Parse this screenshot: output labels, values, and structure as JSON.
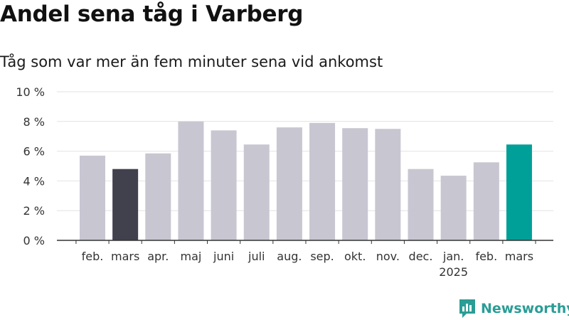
{
  "title": "Andel sena tåg i Varberg",
  "subtitle": "Tåg som var mer än fem minuter sena vid ankomst",
  "brand": "Newsworthy",
  "colors": {
    "default_bar": "#c8c6d1",
    "previous_year_bar": "#41404d",
    "latest_bar": "#00a098"
  },
  "chart_data": {
    "type": "bar",
    "categories": [
      "feb.",
      "mars",
      "apr.",
      "maj",
      "juni",
      "juli",
      "aug.",
      "sep.",
      "okt.",
      "nov.",
      "dec.",
      "jan.",
      "feb.",
      "mars"
    ],
    "category_sublabels": [
      "",
      "",
      "",
      "",
      "",
      "",
      "",
      "",
      "",
      "",
      "",
      "2025",
      "",
      ""
    ],
    "values": [
      5.7,
      4.8,
      5.85,
      8.0,
      7.4,
      6.45,
      7.6,
      7.9,
      7.55,
      7.5,
      4.8,
      4.35,
      5.25,
      6.45
    ],
    "bar_colors": [
      "default_bar",
      "previous_year_bar",
      "default_bar",
      "default_bar",
      "default_bar",
      "default_bar",
      "default_bar",
      "default_bar",
      "default_bar",
      "default_bar",
      "default_bar",
      "default_bar",
      "default_bar",
      "latest_bar"
    ],
    "y_ticks": [
      0,
      2,
      4,
      6,
      8,
      10
    ],
    "y_tick_labels": [
      "0 %",
      "2 %",
      "4 %",
      "6 %",
      "8 %",
      "10 %"
    ],
    "ylim": [
      0,
      10
    ],
    "grid": true,
    "xlabel": "",
    "ylabel": ""
  }
}
